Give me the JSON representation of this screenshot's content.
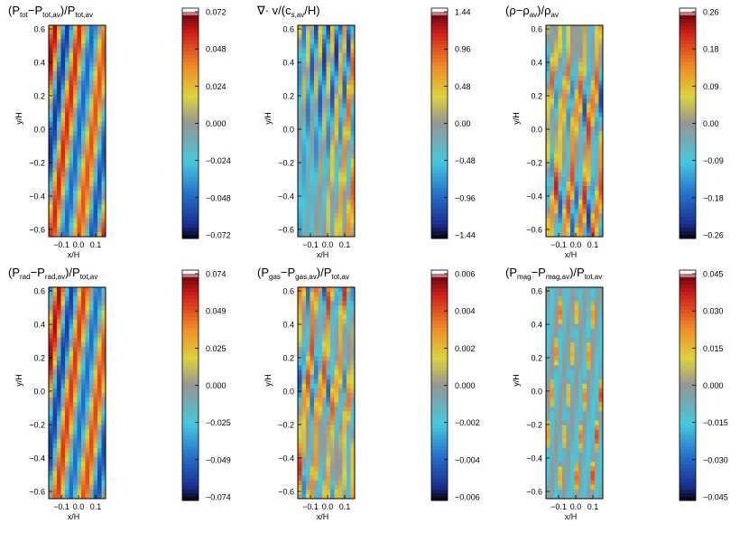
{
  "chart_data": [
    {
      "type": "heatmap",
      "title": "(P_tot−P_tot,av)/P_tot,av",
      "title_parts": [
        [
          "(P",
          ""
        ],
        [
          "tot",
          "sub"
        ],
        [
          "−P",
          ""
        ],
        [
          "tot,av",
          "sub"
        ],
        [
          ")/P",
          ""
        ],
        [
          "tot,av",
          "sub"
        ]
      ],
      "xlabel": "x/H",
      "ylabel": "y/H",
      "xticks": [
        "−0.1",
        "0.0",
        "0.1"
      ],
      "yticks": [
        "0.6",
        "0.4",
        "0.2",
        "0.0",
        "−0.2",
        "−0.4",
        "−0.6"
      ],
      "colorbar_ticks": [
        "0.072",
        "0.048",
        "0.024",
        "0.000",
        "−0.024",
        "−0.048",
        "−0.072"
      ],
      "pattern": "large-scale diagonal pressure bands"
    },
    {
      "type": "heatmap",
      "title": "∇· v/(c_s,av/H)",
      "title_parts": [
        [
          "∇· v/(c",
          ""
        ],
        [
          "s,av",
          "sub"
        ],
        [
          "/H)",
          ""
        ]
      ],
      "xlabel": "x/H",
      "ylabel": "y/H",
      "xticks": [
        "−0.1",
        "0.0",
        "0.1"
      ],
      "yticks": [
        "0.6",
        "0.4",
        "0.2",
        "0.0",
        "−0.2",
        "−0.4",
        "−0.6"
      ],
      "colorbar_ticks": [
        "1.44",
        "0.96",
        "0.48",
        "0.00",
        "−0.48",
        "−0.96",
        "−1.44"
      ],
      "pattern": "fine diagonal divergence streaks"
    },
    {
      "type": "heatmap",
      "title": "(ρ−ρ_av)/ρ_av",
      "title_parts": [
        [
          "(ρ−ρ",
          ""
        ],
        [
          "av",
          "sub"
        ],
        [
          ")/ρ",
          ""
        ],
        [
          "av",
          "sub"
        ]
      ],
      "xlabel": "x/H",
      "ylabel": "y/H",
      "xticks": [
        "−0.1",
        "0.0",
        "0.1"
      ],
      "yticks": [
        "0.6",
        "0.4",
        "0.2",
        "0.0",
        "−0.2",
        "−0.4",
        "−0.6"
      ],
      "colorbar_ticks": [
        "0.26",
        "0.18",
        "0.09",
        "0.00",
        "−0.09",
        "−0.18",
        "−0.26"
      ],
      "pattern": "turbulent density filaments"
    },
    {
      "type": "heatmap",
      "title": "(P_rad−P_rad,av)/P_tot,av",
      "title_parts": [
        [
          "(P",
          ""
        ],
        [
          "rad",
          "sub"
        ],
        [
          "−P",
          ""
        ],
        [
          "rad,av",
          "sub"
        ],
        [
          ")/P",
          ""
        ],
        [
          "tot,av",
          "sub"
        ]
      ],
      "xlabel": "x/H",
      "ylabel": "y/H",
      "xticks": [
        "−0.1",
        "0.0",
        "0.1"
      ],
      "yticks": [
        "0.6",
        "0.4",
        "0.2",
        "0.0",
        "−0.2",
        "−0.4",
        "−0.6"
      ],
      "colorbar_ticks": [
        "0.074",
        "0.049",
        "0.025",
        "0.000",
        "−0.025",
        "−0.049",
        "−0.074"
      ],
      "pattern": "large-scale diagonal pressure bands"
    },
    {
      "type": "heatmap",
      "title": "(P_gas−P_gas,av)/P_tot,av",
      "title_parts": [
        [
          "(P",
          ""
        ],
        [
          "gas",
          "sub"
        ],
        [
          "−P",
          ""
        ],
        [
          "gas,av",
          "sub"
        ],
        [
          ")/P",
          ""
        ],
        [
          "tot,av",
          "sub"
        ]
      ],
      "xlabel": "x/H",
      "ylabel": "y/H",
      "xticks": [
        "−0.1",
        "0.0",
        "0.1"
      ],
      "yticks": [
        "0.6",
        "0.4",
        "0.2",
        "0.0",
        "−0.2",
        "−0.4",
        "−0.6"
      ],
      "colorbar_ticks": [
        "0.006",
        "0.004",
        "0.002",
        "0.000",
        "−0.002",
        "−0.004",
        "−0.006"
      ],
      "pattern": "turbulent gas-pressure filaments"
    },
    {
      "type": "heatmap",
      "title": "(P_mag−P_mag,av)/P_tot,av",
      "title_parts": [
        [
          "(P",
          ""
        ],
        [
          "mag",
          "sub"
        ],
        [
          "−P",
          ""
        ],
        [
          "mag,av",
          "sub"
        ],
        [
          ")/P",
          ""
        ],
        [
          "tot,av",
          "sub"
        ]
      ],
      "xlabel": "x/H",
      "ylabel": "y/H",
      "xticks": [
        "−0.1",
        "0.0",
        "0.1"
      ],
      "yticks": [
        "0.6",
        "0.4",
        "0.2",
        "0.0",
        "−0.2",
        "−0.4",
        "−0.6"
      ],
      "colorbar_ticks": [
        "0.045",
        "0.030",
        "0.015",
        "0.000",
        "−0.015",
        "−0.030",
        "−0.045"
      ],
      "pattern": "sparse magnetic-pressure streaks"
    }
  ]
}
